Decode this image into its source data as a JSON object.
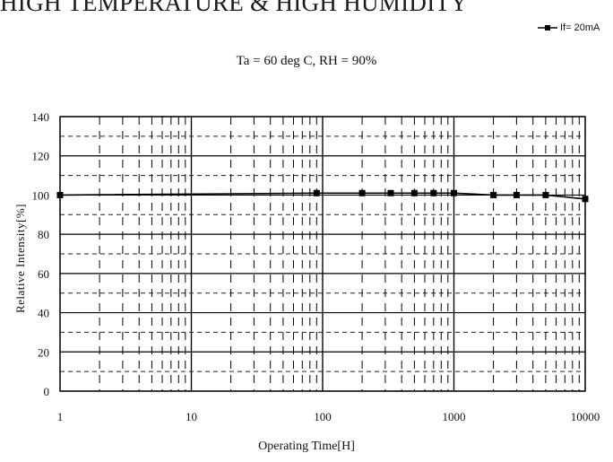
{
  "header": {
    "title": "HIGH TEMPERATURE & HIGH HUMIDITY"
  },
  "chart_data": {
    "type": "line",
    "title": "Ta = 60 deg C, RH = 90%",
    "xlabel": "Operating Time[H]",
    "ylabel": "Relative Intensity[%]",
    "x_scale": "log",
    "xlim": [
      1,
      10000
    ],
    "ylim": [
      0,
      140
    ],
    "x_ticks": [
      "1",
      "10",
      "100",
      "1000",
      "10000"
    ],
    "y_ticks": [
      "0",
      "20",
      "40",
      "60",
      "80",
      "100",
      "120",
      "140"
    ],
    "grid": true,
    "legend_position": "top-right",
    "series": [
      {
        "name": "If= 20mA",
        "color": "#000000",
        "marker": "square",
        "x": [
          1,
          90,
          200,
          330,
          500,
          700,
          1000,
          2000,
          3000,
          5000,
          10000
        ],
        "y": [
          100,
          101,
          101,
          101,
          101,
          101,
          101,
          100,
          100,
          100,
          98
        ]
      }
    ]
  }
}
